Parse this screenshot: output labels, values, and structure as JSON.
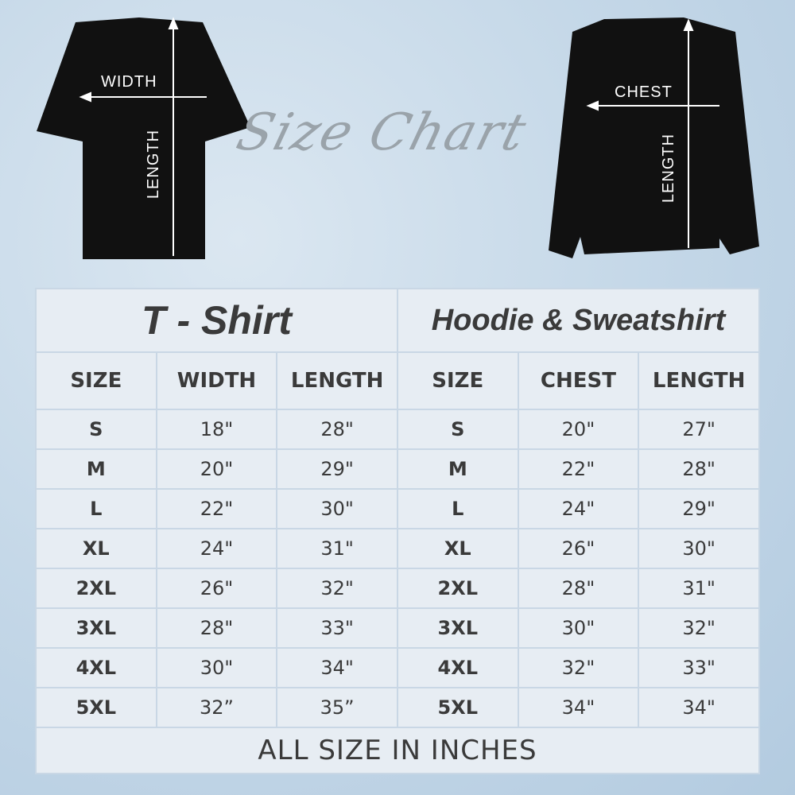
{
  "title": "Size Chart",
  "tshirt_labels": {
    "width": "WIDTH",
    "length": "LENGTH"
  },
  "hoodie_labels": {
    "chest": "CHEST",
    "length": "LENGTH"
  },
  "tshirt": {
    "title": "T - Shirt",
    "headers": [
      "SIZE",
      "WIDTH",
      "LENGTH"
    ],
    "rows": [
      [
        "S",
        "18\"",
        "28\""
      ],
      [
        "M",
        "20\"",
        "29\""
      ],
      [
        "L",
        "22\"",
        "30\""
      ],
      [
        "XL",
        "24\"",
        "31\""
      ],
      [
        "2XL",
        "26\"",
        "32\""
      ],
      [
        "3XL",
        "28\"",
        "33\""
      ],
      [
        "4XL",
        "30\"",
        "34\""
      ],
      [
        "5XL",
        "32”",
        "35”"
      ]
    ]
  },
  "hoodie": {
    "title": "Hoodie & Sweatshirt",
    "headers": [
      "SIZE",
      "CHEST",
      "LENGTH"
    ],
    "rows": [
      [
        "S",
        "20\"",
        "27\""
      ],
      [
        "M",
        "22\"",
        "28\""
      ],
      [
        "L",
        "24\"",
        "29\""
      ],
      [
        "XL",
        "26\"",
        "30\""
      ],
      [
        "2XL",
        "28\"",
        "31\""
      ],
      [
        "3XL",
        "30\"",
        "32\""
      ],
      [
        "4XL",
        "32\"",
        "33\""
      ],
      [
        "5XL",
        "34\"",
        "34\""
      ]
    ]
  },
  "footer": "ALL SIZE IN INCHES"
}
